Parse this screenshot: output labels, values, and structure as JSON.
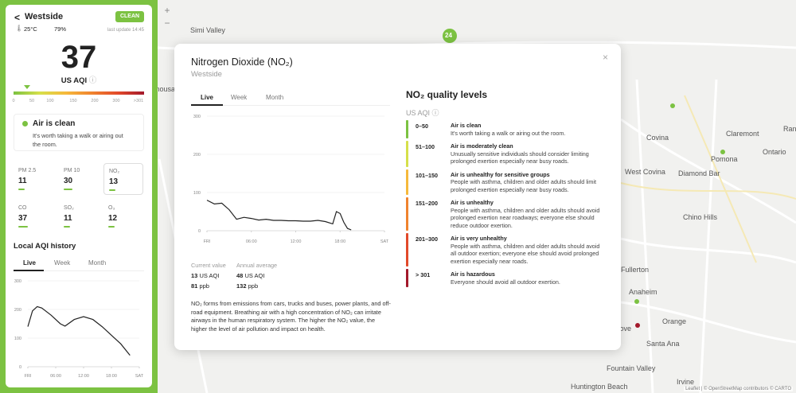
{
  "sidebar": {
    "back": "<",
    "location": "Westside",
    "badge": "CLEAN",
    "temperature": "25°C",
    "humidity": "79%",
    "last_update": "last update 14:45",
    "aqi": 37,
    "aqi_unit": "US AQI",
    "scale": [
      0,
      50,
      100,
      150,
      200,
      300,
      {
        "value": 301,
        "label": ">301"
      }
    ],
    "status_title": "Air is clean",
    "status_text": "It's worth taking a walk or airing out the room.",
    "pollutants": [
      {
        "name": "PM 2.5",
        "value": 11
      },
      {
        "name": "PM 10",
        "value": 30
      },
      {
        "name": "NO₂",
        "value": 13
      },
      {
        "name": "CO",
        "value": 37
      },
      {
        "name": "SO₂",
        "value": 11
      },
      {
        "name": "O₃",
        "value": 12
      }
    ],
    "history_title": "Local AQI history",
    "tabs": [
      "Live",
      "Week",
      "Month"
    ],
    "chart": {
      "type": "line",
      "color": "#222",
      "xlim": [
        0,
        24
      ],
      "ylim": [
        0,
        300
      ],
      "yticks": [
        0,
        100,
        200,
        300
      ],
      "xticks": [
        {
          "value": 0,
          "label": "FRI"
        },
        {
          "value": 6,
          "label": "06:00"
        },
        {
          "value": 12,
          "label": "12:00"
        },
        {
          "value": 18,
          "label": "18:00"
        },
        {
          "value": 24,
          "label": "SAT"
        }
      ],
      "x": [
        0,
        1,
        2,
        3,
        5,
        7,
        8,
        10,
        12,
        14,
        16,
        18,
        20,
        22
      ],
      "values": [
        140,
        195,
        210,
        205,
        180,
        150,
        142,
        165,
        175,
        165,
        140,
        110,
        80,
        40
      ]
    }
  },
  "map": {
    "zoom_in": "+",
    "zoom_out": "−",
    "marker": "24",
    "labels": [
      "Simi Valley",
      "Thousand Oaks",
      "Covina",
      "West Covina",
      "Claremont",
      "Ontario",
      "Pomona",
      "Rancho",
      "Diamond Bar",
      "Chino Hills",
      "Fullerton",
      "Anaheim",
      "Garden Grove",
      "Orange",
      "Santa Ana",
      "Fountain Valley",
      "Irvine",
      "Huntington Beach"
    ],
    "attribution": "Leaflet | © OpenStreetMap contributors © CARTO"
  },
  "modal": {
    "title": "Nitrogen Dioxide (NO₂)",
    "subtitle": "Westside",
    "close": "×",
    "tabs": [
      "Live",
      "Week",
      "Month"
    ],
    "chart": {
      "type": "line",
      "color": "#222",
      "xlim": [
        0,
        24
      ],
      "ylim": [
        0,
        300
      ],
      "yticks": [
        0,
        100,
        200,
        300
      ],
      "xticks": [
        {
          "value": 0,
          "label": "FRI"
        },
        {
          "value": 6,
          "label": "06:00"
        },
        {
          "value": 12,
          "label": "12:00"
        },
        {
          "value": 18,
          "label": "18:00"
        },
        {
          "value": 24,
          "label": "SAT"
        }
      ],
      "x": [
        0,
        1,
        2,
        3,
        4,
        5,
        6,
        7,
        8,
        9,
        10,
        11,
        12,
        13,
        14,
        15,
        16,
        17,
        17.5,
        18,
        18.5,
        19,
        19.5
      ],
      "values": [
        80,
        70,
        72,
        55,
        30,
        35,
        32,
        28,
        30,
        27,
        27,
        26,
        26,
        25,
        25,
        27,
        24,
        18,
        50,
        45,
        22,
        6,
        2
      ]
    },
    "current_label": "Current value",
    "annual_label": "Annual average",
    "unit_aqi": "US AQI",
    "unit_ppb": "ppb",
    "current_aqi": 13,
    "current_ppb": 81,
    "annual_aqi": 48,
    "annual_ppb": 132,
    "description": "NO₂ forms from emissions from cars, trucks and buses, power plants, and off-road equipment. Breathing air with a high concentration of NO₂ can irritate airways in the human respiratory system. The higher the NO₂ value, the higher the level of air pollution and impact on health.",
    "levels_title": "NO₂ quality levels",
    "levels_unit": "US AQI",
    "levels": [
      {
        "range": "0–50",
        "title": "Air is clean",
        "text": "It's worth taking a walk or airing out the room.",
        "color": "#7cc242"
      },
      {
        "range": "51–100",
        "title": "Air is moderately clean",
        "text": "Unusually sensitive individuals should consider limiting prolonged exertion especially near busy roads.",
        "color": "#d6e04a"
      },
      {
        "range": "101–150",
        "title": "Air is unhealthy for sensitive groups",
        "text": "People with asthma, children and older adults should limit prolonged exertion especially near busy roads.",
        "color": "#f6b93b"
      },
      {
        "range": "151–200",
        "title": "Air is unhealthy",
        "text": "People with asthma, children and older adults should avoid prolonged exertion near roadways; everyone else should reduce outdoor exertion.",
        "color": "#f0832e"
      },
      {
        "range": "201–300",
        "title": "Air is very unhealthy",
        "text": "People with asthma, children and older adults should avoid all outdoor exertion; everyone else should avoid prolonged exertion especially near roads.",
        "color": "#e2492a"
      },
      {
        "range": "> 301",
        "title": "Air is hazardous",
        "text": "Everyone should avoid all outdoor exertion.",
        "color": "#a3192b"
      }
    ]
  }
}
